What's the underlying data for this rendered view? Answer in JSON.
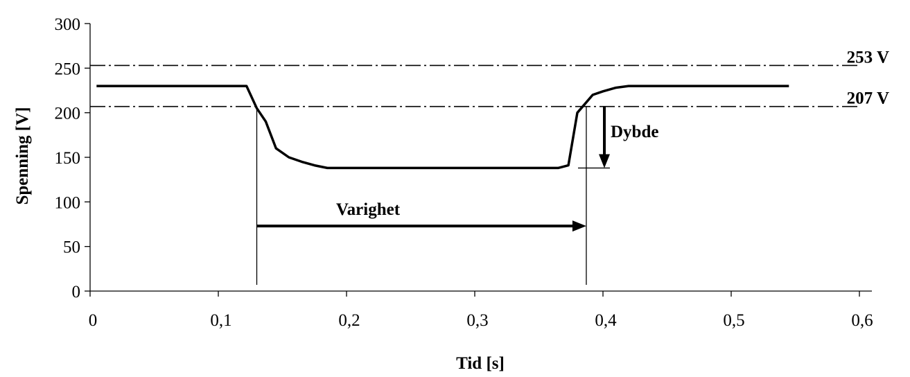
{
  "chart_data": {
    "type": "line",
    "xlabel": "Tid [s]",
    "ylabel": "Spenning [V]",
    "xlim": [
      0,
      0.6
    ],
    "ylim": [
      0,
      300
    ],
    "xticks": [
      0,
      0.1,
      0.2,
      0.3,
      0.4,
      0.5,
      0.6
    ],
    "xtick_labels": [
      "0",
      "0,1",
      "0,2",
      "0,3",
      "0,4",
      "0,5",
      "0,6"
    ],
    "yticks": [
      0,
      50,
      100,
      150,
      200,
      250,
      300
    ],
    "ytick_labels": [
      "0",
      "50",
      "100",
      "150",
      "200",
      "250",
      "300"
    ],
    "grid": false,
    "series": [
      {
        "x": [
          0.005,
          0.122,
          0.13,
          0.137,
          0.145,
          0.155,
          0.165,
          0.175,
          0.185,
          0.2,
          0.25,
          0.3,
          0.35,
          0.365,
          0.373,
          0.38,
          0.386,
          0.392,
          0.4,
          0.41,
          0.42,
          0.43,
          0.5,
          0.545
        ],
        "y": [
          230,
          230,
          205,
          190,
          160,
          150,
          145,
          141,
          138,
          138,
          138,
          138,
          138,
          138,
          141,
          200,
          210,
          220,
          224,
          228,
          230,
          230,
          230,
          230
        ]
      }
    ],
    "reference_lines": [
      {
        "y": 253,
        "label": "253 V"
      },
      {
        "y": 207,
        "label": "207 V"
      }
    ],
    "annotations": [
      {
        "text": "Varighet",
        "arrow_from": [
          0.13,
          73
        ],
        "arrow_to": [
          0.387,
          73
        ]
      },
      {
        "text": "Dybde",
        "arrow_from": [
          0.4,
          207
        ],
        "arrow_to": [
          0.4,
          138
        ]
      }
    ],
    "markers": [
      {
        "x": 0.13,
        "y_from": 7,
        "y_to": 207
      },
      {
        "x": 0.387,
        "y_from": 7,
        "y_to": 207
      }
    ]
  }
}
